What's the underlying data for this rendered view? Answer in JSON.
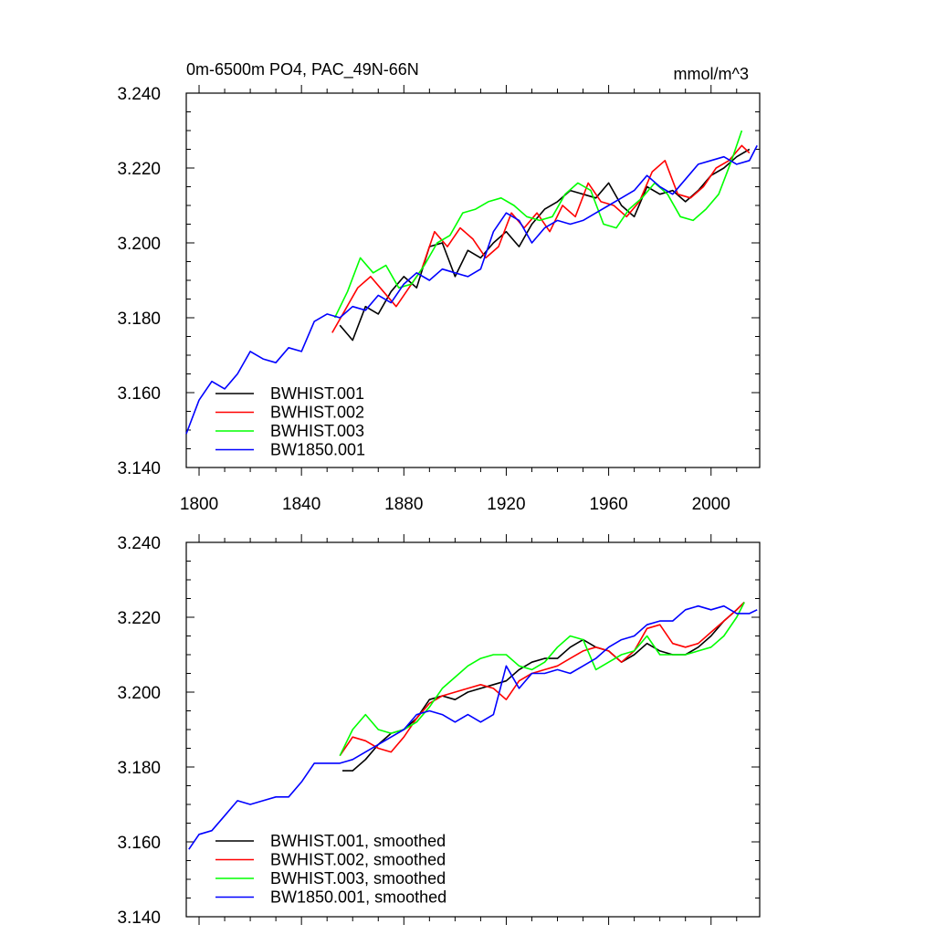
{
  "chart_data": [
    {
      "type": "line",
      "title": "0m-6500m PO4, PAC_49N-66N",
      "units": "mmol/m^3",
      "xlim": [
        1795,
        2019
      ],
      "ylim": [
        3.14,
        3.24
      ],
      "xticks": [
        1800,
        1840,
        1880,
        1920,
        1960,
        2000
      ],
      "xtick_labels": [
        "1800",
        "1840",
        "1880",
        "1920",
        "1960",
        "2000"
      ],
      "yticks": [
        3.14,
        3.16,
        3.18,
        3.2,
        3.22,
        3.24
      ],
      "ytick_labels": [
        "3.140",
        "3.160",
        "3.180",
        "3.200",
        "3.220",
        "3.240"
      ],
      "legend_position": "bottom-left",
      "series": [
        {
          "name": "BWHIST.001",
          "color": "#000000",
          "x": [
            1855,
            1860,
            1865,
            1870,
            1875,
            1880,
            1885,
            1890,
            1895,
            1900,
            1905,
            1910,
            1915,
            1920,
            1925,
            1930,
            1935,
            1940,
            1945,
            1950,
            1955,
            1960,
            1965,
            1970,
            1975,
            1980,
            1985,
            1990,
            1995,
            2000,
            2005,
            2010,
            2015
          ],
          "y": [
            3.178,
            3.174,
            3.183,
            3.181,
            3.187,
            3.191,
            3.188,
            3.199,
            3.2,
            3.191,
            3.198,
            3.196,
            3.2,
            3.203,
            3.199,
            3.205,
            3.209,
            3.211,
            3.214,
            3.213,
            3.212,
            3.216,
            3.21,
            3.207,
            3.215,
            3.213,
            3.214,
            3.211,
            3.214,
            3.218,
            3.22,
            3.223,
            3.225
          ]
        },
        {
          "name": "BWHIST.002",
          "color": "#ff0000",
          "x": [
            1852,
            1857,
            1862,
            1867,
            1872,
            1877,
            1882,
            1887,
            1892,
            1897,
            1902,
            1907,
            1912,
            1917,
            1922,
            1927,
            1932,
            1937,
            1942,
            1947,
            1952,
            1957,
            1962,
            1967,
            1972,
            1977,
            1982,
            1987,
            1992,
            1997,
            2002,
            2007,
            2012,
            2015
          ],
          "y": [
            3.176,
            3.182,
            3.188,
            3.191,
            3.187,
            3.183,
            3.188,
            3.193,
            3.203,
            3.199,
            3.204,
            3.201,
            3.196,
            3.199,
            3.208,
            3.204,
            3.208,
            3.203,
            3.21,
            3.207,
            3.216,
            3.211,
            3.21,
            3.207,
            3.211,
            3.219,
            3.222,
            3.213,
            3.212,
            3.215,
            3.22,
            3.222,
            3.226,
            3.224
          ]
        },
        {
          "name": "BWHIST.003",
          "color": "#00ff00",
          "x": [
            1853,
            1858,
            1863,
            1868,
            1873,
            1878,
            1883,
            1888,
            1893,
            1898,
            1903,
            1908,
            1913,
            1918,
            1923,
            1928,
            1933,
            1938,
            1943,
            1948,
            1953,
            1958,
            1963,
            1968,
            1973,
            1978,
            1983,
            1988,
            1993,
            1998,
            2003,
            2008,
            2012
          ],
          "y": [
            3.18,
            3.187,
            3.196,
            3.192,
            3.194,
            3.188,
            3.189,
            3.194,
            3.2,
            3.202,
            3.208,
            3.209,
            3.211,
            3.212,
            3.21,
            3.207,
            3.206,
            3.207,
            3.213,
            3.216,
            3.214,
            3.205,
            3.204,
            3.209,
            3.212,
            3.216,
            3.213,
            3.207,
            3.206,
            3.209,
            3.213,
            3.222,
            3.23
          ]
        },
        {
          "name": "BW1850.001",
          "color": "#0000ff",
          "x": [
            1795,
            1800,
            1805,
            1810,
            1815,
            1820,
            1825,
            1830,
            1835,
            1840,
            1845,
            1850,
            1855,
            1860,
            1865,
            1870,
            1875,
            1880,
            1885,
            1890,
            1895,
            1900,
            1905,
            1910,
            1915,
            1920,
            1925,
            1930,
            1935,
            1940,
            1945,
            1950,
            1955,
            1960,
            1965,
            1970,
            1975,
            1980,
            1985,
            1990,
            1995,
            2000,
            2005,
            2010,
            2015,
            2018
          ],
          "y": [
            3.149,
            3.158,
            3.163,
            3.161,
            3.165,
            3.171,
            3.169,
            3.168,
            3.172,
            3.171,
            3.179,
            3.181,
            3.18,
            3.183,
            3.182,
            3.186,
            3.184,
            3.189,
            3.192,
            3.19,
            3.193,
            3.192,
            3.191,
            3.193,
            3.203,
            3.208,
            3.206,
            3.2,
            3.204,
            3.206,
            3.205,
            3.206,
            3.208,
            3.21,
            3.212,
            3.214,
            3.218,
            3.215,
            3.213,
            3.217,
            3.221,
            3.222,
            3.223,
            3.221,
            3.222,
            3.226
          ]
        }
      ]
    },
    {
      "type": "line",
      "title": "",
      "units": "",
      "xlim": [
        1795,
        2019
      ],
      "ylim": [
        3.14,
        3.24
      ],
      "xticks": [
        1800,
        1840,
        1880,
        1920,
        1960,
        2000
      ],
      "yticks": [
        3.14,
        3.16,
        3.18,
        3.2,
        3.22,
        3.24
      ],
      "ytick_labels": [
        "3.140",
        "3.160",
        "3.180",
        "3.200",
        "3.220",
        "3.240"
      ],
      "legend_position": "bottom-left",
      "series": [
        {
          "name": "BWHIST.001, smoothed",
          "color": "#000000",
          "x": [
            1856,
            1860,
            1865,
            1870,
            1875,
            1880,
            1885,
            1890,
            1895,
            1900,
            1905,
            1910,
            1915,
            1920,
            1925,
            1930,
            1935,
            1940,
            1945,
            1950,
            1955,
            1960,
            1965,
            1970,
            1975,
            1980,
            1985,
            1990,
            1995,
            2000,
            2005,
            2010,
            2013
          ],
          "y": [
            3.179,
            3.179,
            3.182,
            3.186,
            3.189,
            3.19,
            3.193,
            3.198,
            3.199,
            3.198,
            3.2,
            3.201,
            3.202,
            3.203,
            3.206,
            3.208,
            3.209,
            3.209,
            3.212,
            3.214,
            3.212,
            3.211,
            3.208,
            3.21,
            3.213,
            3.211,
            3.21,
            3.21,
            3.212,
            3.215,
            3.219,
            3.222,
            3.224
          ]
        },
        {
          "name": "BWHIST.002, smoothed",
          "color": "#ff0000",
          "x": [
            1855,
            1860,
            1865,
            1870,
            1875,
            1880,
            1885,
            1890,
            1895,
            1900,
            1905,
            1910,
            1915,
            1920,
            1925,
            1930,
            1935,
            1940,
            1945,
            1950,
            1955,
            1960,
            1965,
            1970,
            1975,
            1980,
            1985,
            1990,
            1995,
            2000,
            2005,
            2010,
            2013
          ],
          "y": [
            3.183,
            3.188,
            3.187,
            3.185,
            3.184,
            3.188,
            3.193,
            3.197,
            3.199,
            3.2,
            3.201,
            3.202,
            3.201,
            3.198,
            3.203,
            3.205,
            3.206,
            3.207,
            3.209,
            3.211,
            3.212,
            3.211,
            3.208,
            3.211,
            3.217,
            3.218,
            3.213,
            3.212,
            3.213,
            3.216,
            3.219,
            3.222,
            3.224
          ]
        },
        {
          "name": "BWHIST.003, smoothed",
          "color": "#00ff00",
          "x": [
            1855,
            1860,
            1865,
            1870,
            1875,
            1880,
            1885,
            1890,
            1895,
            1900,
            1905,
            1910,
            1915,
            1920,
            1925,
            1930,
            1935,
            1940,
            1945,
            1950,
            1955,
            1960,
            1965,
            1970,
            1975,
            1980,
            1985,
            1990,
            1995,
            2000,
            2005,
            2010,
            2013
          ],
          "y": [
            3.183,
            3.19,
            3.194,
            3.19,
            3.189,
            3.19,
            3.192,
            3.196,
            3.201,
            3.204,
            3.207,
            3.209,
            3.21,
            3.21,
            3.207,
            3.206,
            3.208,
            3.212,
            3.215,
            3.214,
            3.206,
            3.208,
            3.21,
            3.211,
            3.215,
            3.21,
            3.21,
            3.21,
            3.211,
            3.212,
            3.215,
            3.22,
            3.224
          ]
        },
        {
          "name": "BW1850.001, smoothed",
          "color": "#0000ff",
          "x": [
            1796,
            1800,
            1805,
            1810,
            1815,
            1820,
            1825,
            1830,
            1835,
            1840,
            1845,
            1850,
            1855,
            1860,
            1865,
            1870,
            1875,
            1880,
            1885,
            1890,
            1895,
            1900,
            1905,
            1910,
            1915,
            1920,
            1925,
            1930,
            1935,
            1940,
            1945,
            1950,
            1955,
            1960,
            1965,
            1970,
            1975,
            1980,
            1985,
            1990,
            1995,
            2000,
            2005,
            2010,
            2015,
            2018
          ],
          "y": [
            3.158,
            3.162,
            3.163,
            3.167,
            3.171,
            3.17,
            3.171,
            3.172,
            3.172,
            3.176,
            3.181,
            3.181,
            3.181,
            3.182,
            3.184,
            3.186,
            3.188,
            3.19,
            3.194,
            3.195,
            3.194,
            3.192,
            3.194,
            3.192,
            3.194,
            3.207,
            3.201,
            3.205,
            3.205,
            3.206,
            3.205,
            3.207,
            3.209,
            3.212,
            3.214,
            3.215,
            3.218,
            3.219,
            3.219,
            3.222,
            3.223,
            3.222,
            3.223,
            3.221,
            3.221,
            3.222
          ]
        }
      ]
    }
  ]
}
